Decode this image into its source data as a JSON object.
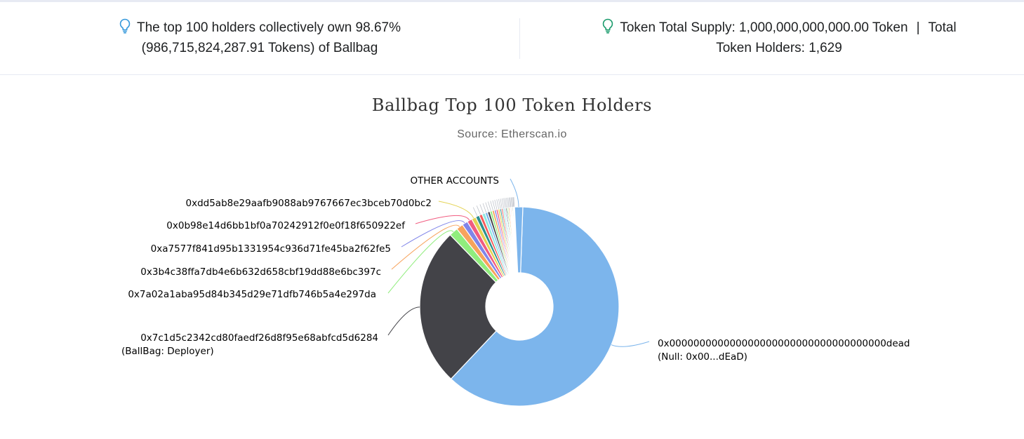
{
  "stats": {
    "holders_text_line1": "The top 100 holders collectively own 98.67%",
    "holders_text_line2": "(986,715,824,287.91 Tokens) of Ballbag",
    "supply_text": "Token Total Supply: 1,000,000,000,000.00 Token",
    "separator": "|",
    "holders_label_a": "Total",
    "holders_label_b": "Token Holders: 1,629",
    "icon": "lightbulb-icon",
    "icon_color_left": "#3498db",
    "icon_color_right": "#1a9b6c"
  },
  "chart_data": {
    "type": "pie",
    "title": "Ballbag Top 100 Token Holders",
    "subtitle": "Source: Etherscan.io",
    "donut": true,
    "slices": [
      {
        "name": "0x000000000000000000000000000000000000dead",
        "name_line2": "(Null: 0x00...dEaD)",
        "share": 60.4,
        "color": "#7cb5ec"
      },
      {
        "name": "0x7c1d5c2342cd80faedf26d8f95e68abfcd5d6284",
        "name_line2": "(BallBag: Deployer)",
        "share": 25.3,
        "color": "#434348"
      },
      {
        "name": "0x7a02a1aba95d84b345d29e71dfb746b5a4e297da",
        "share": 1.4,
        "color": "#90ed7d"
      },
      {
        "name": "0x3b4c38ffa7db4e6b632d658cbf19dd88e6bc397c",
        "share": 1.1,
        "color": "#f7a35c"
      },
      {
        "name": "0xa7577f841d95b1331954c936d71fe45ba2f62fe5",
        "share": 0.9,
        "color": "#8085e9"
      },
      {
        "name": "0x0b98e14d6bb1bf0a70242912f0e0f18f650922ef",
        "share": 0.8,
        "color": "#f15c80"
      },
      {
        "name": "0xdd5ab8e29aafb9088ab9767667ec3bceb70d0bc2",
        "share": 0.7,
        "color": "#e4d354"
      },
      {
        "name": "",
        "share": 0.6,
        "color": "#2b908f"
      },
      {
        "name": "",
        "share": 0.5,
        "color": "#f45b5b"
      },
      {
        "name": "",
        "share": 0.5,
        "color": "#91e8e1"
      },
      {
        "name": "",
        "share": 0.4,
        "color": "#7cb5ec"
      },
      {
        "name": "",
        "share": 0.4,
        "color": "#434348"
      },
      {
        "name": "",
        "share": 0.35,
        "color": "#90ed7d"
      },
      {
        "name": "",
        "share": 0.35,
        "color": "#f7a35c"
      },
      {
        "name": "",
        "share": 0.3,
        "color": "#8085e9"
      },
      {
        "name": "",
        "share": 0.3,
        "color": "#f15c80"
      },
      {
        "name": "",
        "share": 0.3,
        "color": "#e4d354"
      },
      {
        "name": "",
        "share": 0.25,
        "color": "#2b908f"
      },
      {
        "name": "",
        "share": 0.25,
        "color": "#f45b5b"
      },
      {
        "name": "",
        "share": 0.25,
        "color": "#91e8e1"
      },
      {
        "name": "",
        "share": 0.2,
        "color": "#7cb5ec"
      },
      {
        "name": "",
        "share": 0.2,
        "color": "#434348"
      },
      {
        "name": "",
        "share": 0.2,
        "color": "#90ed7d"
      },
      {
        "name": "",
        "share": 0.2,
        "color": "#f7a35c"
      },
      {
        "name": "",
        "share": 0.15,
        "color": "#8085e9"
      },
      {
        "name": "",
        "share": 0.15,
        "color": "#f15c80"
      },
      {
        "name": "",
        "share": 0.15,
        "color": "#e4d354"
      },
      {
        "name": "",
        "share": 0.15,
        "color": "#2b908f"
      },
      {
        "name": "",
        "share": 0.1,
        "color": "#f45b5b"
      },
      {
        "name": "",
        "share": 0.1,
        "color": "#91e8e1"
      },
      {
        "name": "OTHER ACCOUNTS",
        "share": 1.3,
        "color": "#7cb5ec"
      }
    ]
  }
}
